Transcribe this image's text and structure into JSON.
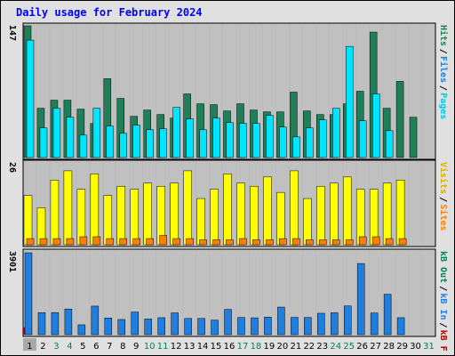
{
  "title": "Daily usage for February 2024",
  "chart_data": [
    {
      "type": "bar",
      "panel": "pages-files-hits",
      "x": [
        "1",
        "2",
        "3",
        "4",
        "5",
        "6",
        "7",
        "8",
        "9",
        "10",
        "11",
        "12",
        "13",
        "14",
        "15",
        "16",
        "17",
        "18",
        "19",
        "20",
        "21",
        "22",
        "23",
        "24",
        "25",
        "26",
        "27",
        "28",
        "29",
        "30",
        "31"
      ],
      "ymax_label": "147",
      "ylim": [
        0,
        147
      ],
      "right_legend": [
        "Pages",
        "/",
        "Files",
        "/",
        "Hits"
      ],
      "series": [
        {
          "name": "Hits",
          "color": "#1f7f57",
          "values": [
            147,
            55,
            64,
            64,
            54,
            38,
            88,
            66,
            46,
            53,
            48,
            44,
            71,
            60,
            59,
            52,
            60,
            53,
            51,
            51,
            73,
            52,
            48,
            48,
            60,
            74,
            140,
            55,
            85,
            45,
            0
          ]
        },
        {
          "name": "Files",
          "color": "#00e5ff",
          "values": [
            131,
            33,
            55,
            45,
            25,
            55,
            35,
            27,
            36,
            31,
            32,
            56,
            43,
            31,
            44,
            39,
            38,
            38,
            47,
            34,
            23,
            33,
            42,
            55,
            124,
            41,
            71,
            30,
            0,
            0,
            0
          ]
        },
        {
          "name": "Pages",
          "color": "#0a46d2",
          "values": [
            0,
            0,
            0,
            0,
            0,
            0,
            0,
            0,
            0,
            0,
            0,
            0,
            0,
            0,
            0,
            0,
            0,
            0,
            0,
            0,
            0,
            0,
            0,
            0,
            0,
            0,
            0,
            0,
            0,
            0,
            0
          ]
        }
      ]
    },
    {
      "type": "bar",
      "panel": "visits-sites",
      "ymax_label": "26",
      "ylim": [
        0,
        26
      ],
      "right_legend": [
        "Visits",
        "/",
        "Sites"
      ],
      "series": [
        {
          "name": "Visits",
          "color": "#ffff00",
          "values": [
            16,
            12,
            21,
            24,
            18,
            23,
            16,
            19,
            18,
            20,
            19,
            20,
            24,
            15,
            18,
            23,
            20,
            19,
            22,
            17,
            24,
            15,
            19,
            20,
            22,
            18,
            18,
            20,
            21,
            0,
            0
          ]
        },
        {
          "name": "Sites",
          "color": "#ff8000",
          "values": [
            2,
            2,
            2,
            2,
            2.6,
            2.6,
            2,
            2,
            2,
            2,
            3,
            2,
            2,
            1.6,
            1.6,
            1.6,
            2,
            1.6,
            1.6,
            2,
            2,
            1.6,
            1.6,
            1.6,
            1.6,
            2.6,
            2.6,
            2,
            2,
            0,
            0
          ]
        }
      ]
    },
    {
      "type": "bar",
      "panel": "kb-in-out",
      "ymax_label": "3901",
      "ylim": [
        0,
        3901
      ],
      "right_legend": [
        "kB F",
        "/",
        "kB In",
        "/",
        "kB Out"
      ],
      "series": [
        {
          "name": "kB In",
          "color": "#1e7fe0",
          "values": [
            3901,
            1051,
            1052,
            1221,
            468,
            1360,
            795,
            722,
            1076,
            745,
            808,
            1037,
            770,
            774,
            692,
            1204,
            819,
            802,
            834,
            1313,
            822,
            816,
            1018,
            1043,
            1368,
            3388,
            1031,
            1924,
            808,
            0,
            0
          ]
        },
        {
          "name": "kB F",
          "color": "#b00000",
          "values": [
            350,
            0,
            0,
            0,
            0,
            0,
            0,
            0,
            0,
            0,
            0,
            0,
            0,
            0,
            0,
            0,
            0,
            0,
            0,
            0,
            0,
            0,
            0,
            0,
            0,
            0,
            0,
            0,
            0,
            0,
            0
          ]
        }
      ]
    }
  ],
  "day_labels": [
    "1",
    "2",
    "3",
    "4",
    "5",
    "6",
    "7",
    "8",
    "9",
    "10",
    "11",
    "12",
    "13",
    "14",
    "15",
    "16",
    "17",
    "18",
    "19",
    "20",
    "21",
    "22",
    "23",
    "24",
    "25",
    "26",
    "27",
    "28",
    "29",
    "30",
    "31"
  ],
  "weekend_days": [
    3,
    4,
    10,
    11,
    17,
    18,
    24,
    25,
    31
  ],
  "colors": {
    "frame_bg": "#e0e0e0",
    "panel_bg": "#c0c0c0",
    "weekday_label": "#000000",
    "weekend_label": "#00805c",
    "today_bg": "#a8a8a8"
  }
}
